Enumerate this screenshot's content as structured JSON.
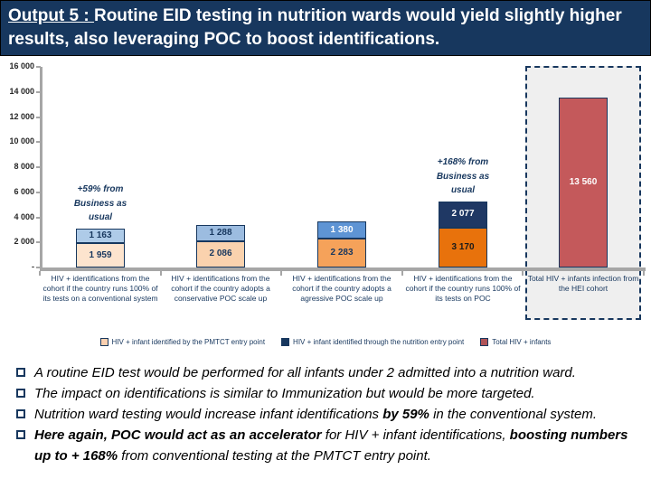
{
  "title": {
    "prefix": "Output 5 : ",
    "rest": "Routine EID testing in nutrition wards would yield slightly higher results, also leveraging POC to boost identifications."
  },
  "colors": {
    "title_background": "#17375E",
    "title_text": "#FFFFFF",
    "axis_gray": "#A6A6A6",
    "dark_navy": "#17375E",
    "highlight_box_fill": "#EFEFEF",
    "total_bar_red": "#C4595B"
  },
  "chart_data": {
    "type": "bar",
    "stacked": true,
    "title": "",
    "xlabel": "",
    "ylabel": "",
    "ylim": [
      0,
      16000
    ],
    "grid": false,
    "legend_position": "bottom",
    "y_ticks": [
      "16 000",
      "14 000",
      "12 000",
      "10 000",
      "8 000",
      "6 000",
      "4 000",
      "2 000",
      "-"
    ],
    "categories": [
      "HIV + identifications from the cohort if the country runs 100% of its tests on a conventional system",
      "HIV + identifications from the cohort if the country adopts a conservative POC scale up",
      "HIV + identifications from the cohort if the country adopts a agressive POC scale up",
      "HIV + identifications from the cohort if the country runs 100% of its tests on POC",
      "Total HIV + infants infection from the HEI cohort"
    ],
    "series": [
      {
        "name": "HIV + infant identified by the PMTCT entry point",
        "values": [
          1959,
          2086,
          2283,
          3170,
          null
        ]
      },
      {
        "name": "HIV + infant identified through the nutrition entry point",
        "values": [
          1163,
          1288,
          1380,
          2077,
          null
        ]
      },
      {
        "name": "Total HIV + infants",
        "values": [
          null,
          null,
          null,
          null,
          13560
        ]
      }
    ],
    "bars": [
      {
        "segments": [
          {
            "series": "pmtct",
            "value": 1959,
            "label": "1 959",
            "color": "#FDE4CE",
            "text_color": "#17375E"
          },
          {
            "series": "nutrition",
            "value": 1163,
            "label": "1 163",
            "color": "#AECBE8",
            "text_color": "#17375E"
          }
        ]
      },
      {
        "segments": [
          {
            "series": "pmtct",
            "value": 2086,
            "label": "2 086",
            "color": "#FAD2AE",
            "text_color": "#17375E"
          },
          {
            "series": "nutrition",
            "value": 1288,
            "label": "1 288",
            "color": "#9CBCE0",
            "text_color": "#17375E"
          }
        ]
      },
      {
        "segments": [
          {
            "series": "pmtct",
            "value": 2283,
            "label": "2 283",
            "color": "#F5A25A",
            "text_color": "#17375E"
          },
          {
            "series": "nutrition",
            "value": 1380,
            "label": "1 380",
            "color": "#5E94D4",
            "text_color": "#FFFFFF"
          }
        ]
      },
      {
        "segments": [
          {
            "series": "pmtct",
            "value": 3170,
            "label": "3 170",
            "color": "#E8720C",
            "text_color": "#1a1a1a"
          },
          {
            "series": "nutrition",
            "value": 2077,
            "label": "2 077",
            "color": "#1F3864",
            "text_color": "#FFFFFF"
          }
        ]
      },
      {
        "highlight_box": true,
        "segments": [
          {
            "series": "total",
            "value": 13560,
            "label": "13 560",
            "color": "#C4595B",
            "text_color": "#FFFFFF"
          }
        ]
      }
    ],
    "annotations": [
      {
        "bar": 0,
        "text": "+59% from\nBusiness as\nusual"
      },
      {
        "bar": 3,
        "text": "+168% from\nBusiness as\nusual"
      }
    ]
  },
  "legend": [
    {
      "label": "HIV + infant identified by the PMTCT entry point",
      "color": "#FBD0B0"
    },
    {
      "label": "HIV + infant identified through the nutrition entry point",
      "color": "#17375E"
    },
    {
      "label": "Total HIV + infants",
      "color": "#B05458"
    }
  ],
  "bullets": [
    {
      "segments": [
        {
          "text": "A routine EID test would be performed for all infants under 2 admitted into a nutrition ward.",
          "bold": false
        }
      ]
    },
    {
      "segments": [
        {
          "text": "The impact on identifications is similar to Immunization but would be more targeted.",
          "bold": false
        }
      ]
    },
    {
      "segments": [
        {
          "text": "Nutrition ward testing would increase infant identifications ",
          "bold": false
        },
        {
          "text": "by 59%",
          "bold": true
        },
        {
          "text": " in the conventional system.",
          "bold": false
        }
      ]
    },
    {
      "segments": [
        {
          "text": "Here again, POC would act as an accelerator",
          "bold": true
        },
        {
          "text": " for HIV + infant identifications, ",
          "bold": false
        },
        {
          "text": "boosting numbers up to + 168%",
          "bold": true
        },
        {
          "text": " from conventional testing at the PMTCT entry point.",
          "bold": false
        }
      ]
    }
  ]
}
